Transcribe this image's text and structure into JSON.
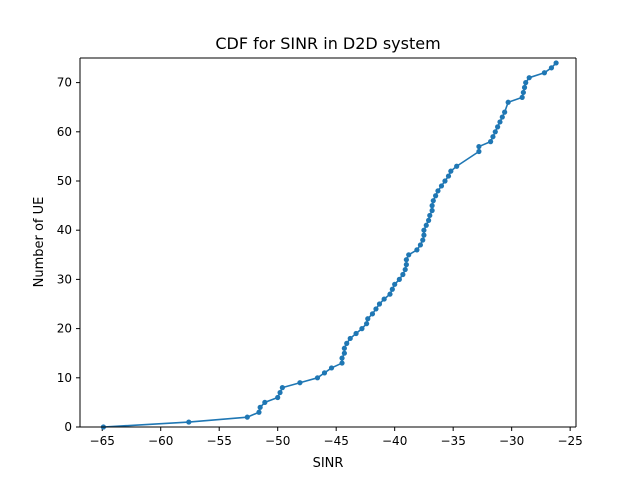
{
  "chart_data": {
    "type": "line",
    "title": "CDF for SINR in D2D system",
    "xlabel": "SINR",
    "ylabel": "Number of UE",
    "xlim": [
      -66.9,
      -24.5
    ],
    "ylim": [
      0,
      75
    ],
    "xticks": [
      -65,
      -60,
      -55,
      -50,
      -45,
      -40,
      -35,
      -30,
      -25
    ],
    "yticks": [
      0,
      10,
      20,
      30,
      40,
      50,
      60,
      70
    ],
    "xtick_labels": [
      "−65",
      "−60",
      "−55",
      "−50",
      "−45",
      "−40",
      "−35",
      "−30",
      "−25"
    ],
    "ytick_labels": [
      "0",
      "10",
      "20",
      "30",
      "40",
      "50",
      "60",
      "70"
    ],
    "grid": false,
    "marker": "circle",
    "series": [
      {
        "color": "#1f77b4",
        "x": [
          -64.9,
          -57.6,
          -52.6,
          -51.6,
          -51.5,
          -51.1,
          -50.0,
          -49.8,
          -49.6,
          -48.1,
          -46.6,
          -46.0,
          -45.4,
          -44.5,
          -44.5,
          -44.3,
          -44.3,
          -44.1,
          -43.8,
          -43.3,
          -42.8,
          -42.4,
          -42.3,
          -41.9,
          -41.6,
          -41.3,
          -40.9,
          -40.4,
          -40.2,
          -40.0,
          -39.6,
          -39.3,
          -39.1,
          -39.0,
          -39.0,
          -38.8,
          -38.1,
          -37.8,
          -37.6,
          -37.5,
          -37.5,
          -37.3,
          -37.1,
          -37.0,
          -36.8,
          -36.8,
          -36.7,
          -36.5,
          -36.3,
          -36.0,
          -35.7,
          -35.4,
          -35.2,
          -34.7,
          -32.8,
          -32.8,
          -31.8,
          -31.6,
          -31.4,
          -31.2,
          -31.0,
          -30.8,
          -30.6,
          -30.3,
          -29.1,
          -29.0,
          -28.9,
          -28.8,
          -28.5,
          -27.2,
          -26.6,
          -26.2
        ],
        "y": [
          0,
          1,
          2,
          3,
          4,
          5,
          6,
          7,
          8,
          9,
          10,
          11,
          12,
          13,
          14,
          15,
          16,
          17,
          18,
          19,
          20,
          21,
          22,
          23,
          24,
          25,
          26,
          27,
          28,
          29,
          30,
          31,
          32,
          33,
          34,
          35,
          36,
          37,
          38,
          39,
          40,
          41,
          42,
          43,
          44,
          45,
          46,
          47,
          48,
          49,
          50,
          51,
          52,
          53,
          56,
          57,
          58,
          59,
          60,
          61,
          62,
          63,
          64,
          66,
          67,
          68,
          69,
          70,
          71,
          72,
          73,
          74
        ]
      }
    ]
  }
}
